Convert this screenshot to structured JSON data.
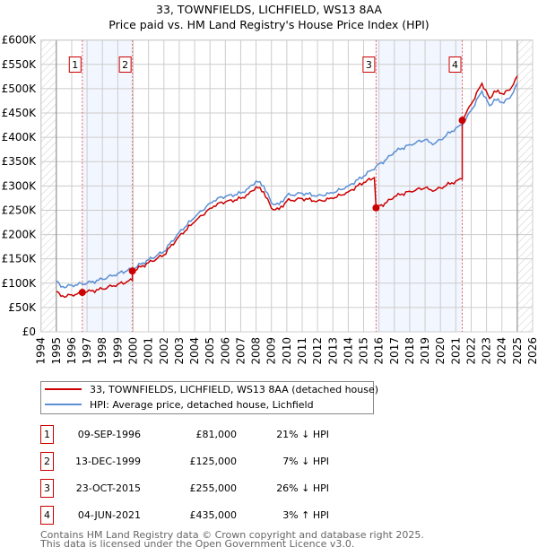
{
  "chart_data": {
    "type": "line",
    "title": "33, TOWNFIELDS, LICHFIELD, WS13 8AA",
    "subtitle": "Price paid vs. HM Land Registry's House Price Index (HPI)",
    "xlim": [
      1994,
      2026
    ],
    "ylim": [
      0,
      600000
    ],
    "x_ticks": [
      "1994",
      "1995",
      "1996",
      "1997",
      "1998",
      "1999",
      "2000",
      "2001",
      "2002",
      "2003",
      "2004",
      "2005",
      "2006",
      "2007",
      "2008",
      "2009",
      "2010",
      "2011",
      "2012",
      "2013",
      "2014",
      "2015",
      "2016",
      "2017",
      "2018",
      "2019",
      "2020",
      "2021",
      "2022",
      "2023",
      "2024",
      "2025",
      "2026"
    ],
    "y_ticks": [
      "£0",
      "£50K",
      "£100K",
      "£150K",
      "£200K",
      "£250K",
      "£300K",
      "£350K",
      "£400K",
      "£450K",
      "£500K",
      "£550K",
      "£600K"
    ],
    "grid": true,
    "series": [
      {
        "name": "33, TOWNFIELDS, LICHFIELD, WS13 8AA (detached house)",
        "color": "#cc0000",
        "x": [
          1995,
          1995.3,
          1996,
          1996.69,
          1997,
          1998,
          1999,
          1999.95,
          1999.95,
          2000,
          2001,
          2002,
          2003,
          2004,
          2005,
          2005.5,
          2006,
          2007,
          2007.5,
          2008,
          2008.5,
          2009,
          2009.5,
          2010,
          2011,
          2012,
          2013,
          2014,
          2015,
          2015.7,
          2015.81,
          2016.5,
          2017,
          2018,
          2019,
          2019.5,
          2020,
          2021,
          2021.42,
          2021.42,
          2022,
          2022.7,
          2023.2,
          2023.5,
          2024,
          2024.5,
          2025
        ],
        "y": [
          83000,
          73000,
          76000,
          81000,
          82000,
          88000,
          98000,
          106000,
          125000,
          125000,
          142000,
          158000,
          197000,
          226000,
          254000,
          264000,
          267000,
          274000,
          283000,
          298000,
          288000,
          254000,
          252000,
          269000,
          274000,
          269000,
          274000,
          288000,
          307000,
          317000,
          255000,
          266000,
          278000,
          289000,
          296000,
          289000,
          296000,
          310000,
          314000,
          435000,
          468000,
          511000,
          480000,
          495000,
          490000,
          497000,
          526000
        ]
      },
      {
        "name": "HPI: Average price, detached house, Lichfield",
        "color": "#5b8fd4",
        "x": [
          1995,
          1995.3,
          1996,
          1997,
          1998,
          1999,
          2000,
          2001,
          2002,
          2003,
          2004,
          2005,
          2005.5,
          2006,
          2007,
          2007.5,
          2008,
          2008.5,
          2009,
          2009.5,
          2010,
          2011,
          2012,
          2013,
          2014,
          2015,
          2015.81,
          2016.5,
          2017,
          2018,
          2019,
          2019.5,
          2020,
          2021,
          2021.42,
          2022,
          2022.7,
          2023.2,
          2023.5,
          2024,
          2024.5,
          2025
        ],
        "y": [
          105000,
          92000,
          96000,
          100000,
          108000,
          120000,
          130000,
          148000,
          165000,
          205000,
          235000,
          265000,
          275000,
          278000,
          285000,
          295000,
          310000,
          300000,
          265000,
          262000,
          280000,
          285000,
          280000,
          285000,
          300000,
          320000,
          340000,
          355000,
          370000,
          385000,
          395000,
          385000,
          395000,
          419000,
          425000,
          455000,
          495000,
          465000,
          478000,
          472000,
          480000,
          511000
        ]
      }
    ],
    "sales": [
      {
        "label": "1",
        "x": 1996.69,
        "y": 81000,
        "date": "09-SEP-1996",
        "price": "£81,000",
        "hpi": "21% ↓ HPI"
      },
      {
        "label": "2",
        "x": 1999.95,
        "y": 125000,
        "date": "13-DEC-1999",
        "price": "£125,000",
        "hpi": "7% ↓ HPI"
      },
      {
        "label": "3",
        "x": 2015.81,
        "y": 255000,
        "date": "23-OCT-2015",
        "price": "£255,000",
        "hpi": "26% ↓ HPI"
      },
      {
        "label": "4",
        "x": 2021.42,
        "y": 435000,
        "date": "04-JUN-2021",
        "price": "£435,000",
        "hpi": "3% ↑ HPI"
      }
    ],
    "data_range": [
      1995,
      2025
    ],
    "legend_placement": "below"
  },
  "footer": {
    "line1": "Contains HM Land Registry data © Crown copyright and database right 2025.",
    "line2": "This data is licensed under the Open Government Licence v3.0."
  }
}
